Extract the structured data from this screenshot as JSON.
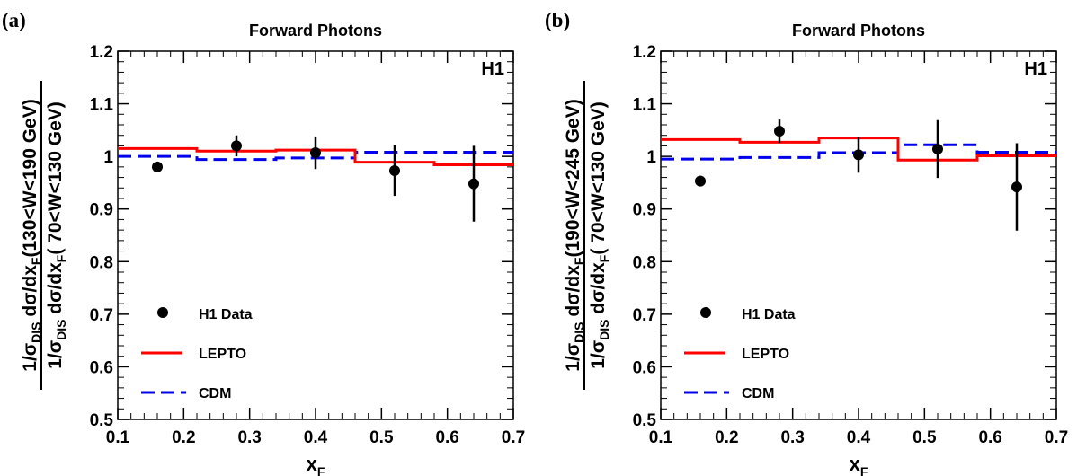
{
  "chart_data": [
    {
      "type": "scatter",
      "panel_label": "(a)",
      "title": "Forward Photons",
      "experiment_label": "H1",
      "xlabel": "x",
      "xlabel_sub": "F",
      "ylabel_num": {
        "pre": "1/σ",
        "sub1": "DIS",
        "mid": " dσ/dx",
        "sub2": "F",
        "post": "(130<W<190 GeV)"
      },
      "ylabel_den": {
        "pre": "1/σ",
        "sub1": "DIS",
        "mid": " dσ/dx",
        "sub2": "F",
        "post": "( 70<W<130 GeV)"
      },
      "xlim": [
        0.1,
        0.7
      ],
      "ylim": [
        0.5,
        1.2
      ],
      "x_ticks": [
        "0.1",
        "0.2",
        "0.3",
        "0.4",
        "0.5",
        "0.6",
        "0.7"
      ],
      "y_ticks": [
        "0.5",
        "0.6",
        "0.7",
        "0.8",
        "0.9",
        "1",
        "1.1",
        "1.2"
      ],
      "legend": [
        "H1 Data",
        "LEPTO",
        "CDM"
      ],
      "legend_position": "lower-left",
      "colors": {
        "data": "#000000",
        "lepto": "#ff0000",
        "cdm": "#0000ee"
      },
      "bin_edges": [
        0.1,
        0.22,
        0.34,
        0.46,
        0.58,
        0.7
      ],
      "data": {
        "x": [
          0.16,
          0.28,
          0.4,
          0.52,
          0.64
        ],
        "y": [
          0.98,
          1.02,
          1.007,
          0.973,
          0.948
        ],
        "err": [
          0.009,
          0.02,
          0.031,
          0.048,
          0.072
        ]
      },
      "lepto": [
        1.015,
        1.01,
        1.012,
        0.989,
        0.984
      ],
      "cdm": [
        1.0,
        0.994,
        0.997,
        1.008,
        1.008
      ]
    },
    {
      "type": "scatter",
      "panel_label": "(b)",
      "title": "Forward Photons",
      "experiment_label": "H1",
      "xlabel": "x",
      "xlabel_sub": "F",
      "ylabel_num": {
        "pre": "1/σ",
        "sub1": "DIS",
        "mid": " dσ/dx",
        "sub2": "F",
        "post": "(190<W<245 GeV)"
      },
      "ylabel_den": {
        "pre": "1/σ",
        "sub1": "DIS",
        "mid": " dσ/dx",
        "sub2": "F",
        "post": "( 70<W<130 GeV)"
      },
      "xlim": [
        0.1,
        0.7
      ],
      "ylim": [
        0.5,
        1.2
      ],
      "x_ticks": [
        "0.1",
        "0.2",
        "0.3",
        "0.4",
        "0.5",
        "0.6",
        "0.7"
      ],
      "y_ticks": [
        "0.5",
        "0.6",
        "0.7",
        "0.8",
        "0.9",
        "1",
        "1.1",
        "1.2"
      ],
      "legend": [
        "H1 Data",
        "LEPTO",
        "CDM"
      ],
      "legend_position": "lower-left",
      "colors": {
        "data": "#000000",
        "lepto": "#ff0000",
        "cdm": "#0000ee"
      },
      "bin_edges": [
        0.1,
        0.22,
        0.34,
        0.46,
        0.58,
        0.7
      ],
      "data": {
        "x": [
          0.16,
          0.28,
          0.4,
          0.52,
          0.64
        ],
        "y": [
          0.953,
          1.048,
          1.003,
          1.014,
          0.942
        ],
        "err": [
          0.01,
          0.022,
          0.034,
          0.055,
          0.083
        ]
      },
      "lepto": [
        1.032,
        1.027,
        1.035,
        0.993,
        1.001
      ],
      "cdm": [
        0.995,
        0.998,
        1.007,
        1.022,
        1.008
      ]
    }
  ]
}
